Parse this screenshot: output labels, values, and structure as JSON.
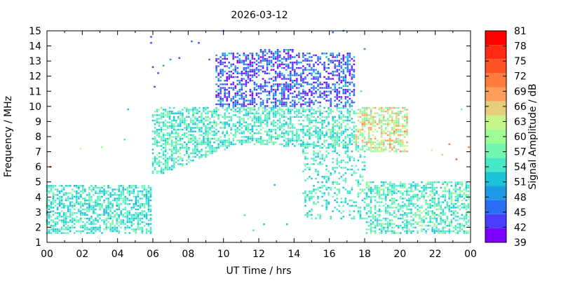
{
  "chart_data": {
    "type": "heatmap",
    "title": "2026-03-12",
    "xlabel": "UT Time / hrs",
    "ylabel": "Frequency / MHz",
    "colorbar_label": "Signal Amplitude / dB",
    "xlim": [
      0,
      24
    ],
    "ylim": [
      1,
      15
    ],
    "x_ticks": [
      "00",
      "02",
      "04",
      "06",
      "08",
      "10",
      "12",
      "14",
      "16",
      "18",
      "20",
      "22",
      "00"
    ],
    "y_ticks": [
      "1",
      "2",
      "3",
      "4",
      "5",
      "6",
      "7",
      "8",
      "9",
      "10",
      "11",
      "12",
      "13",
      "14",
      "15"
    ],
    "colorbar_ticks": [
      "39",
      "42",
      "45",
      "48",
      "51",
      "54",
      "57",
      "60",
      "63",
      "66",
      "69",
      "72",
      "75",
      "78",
      "81"
    ],
    "colorbar_range": [
      39,
      81
    ],
    "colormap": [
      "#8000ff",
      "#4a3dff",
      "#2b6ef6",
      "#1e9ae6",
      "#1bc4d6",
      "#47e8c8",
      "#72f6b0",
      "#9cfc98",
      "#c7f68a",
      "#e6cf7c",
      "#ff9e5a",
      "#ff7a3c",
      "#ff5224",
      "#ff2a12",
      "#ff0000"
    ],
    "grid": false,
    "data_description_bands": [
      {
        "hours": [
          0,
          5.8
        ],
        "freq_mhz": [
          1.6,
          4.8
        ],
        "level_db": [
          50,
          60
        ]
      },
      {
        "hours": [
          6,
          18
        ],
        "freq_mhz": [
          5.8,
          10
        ],
        "level_db": [
          51,
          60
        ]
      },
      {
        "hours": [
          9.5,
          17.5
        ],
        "freq_mhz": [
          10,
          13.5
        ],
        "level_db": [
          39,
          51
        ]
      },
      {
        "hours": [
          17.5,
          20.5
        ],
        "freq_mhz": [
          7,
          10
        ],
        "level_db": [
          55,
          70
        ]
      },
      {
        "hours": [
          17.5,
          24
        ],
        "freq_mhz": [
          1.6,
          5
        ],
        "level_db": [
          51,
          60
        ]
      }
    ]
  }
}
